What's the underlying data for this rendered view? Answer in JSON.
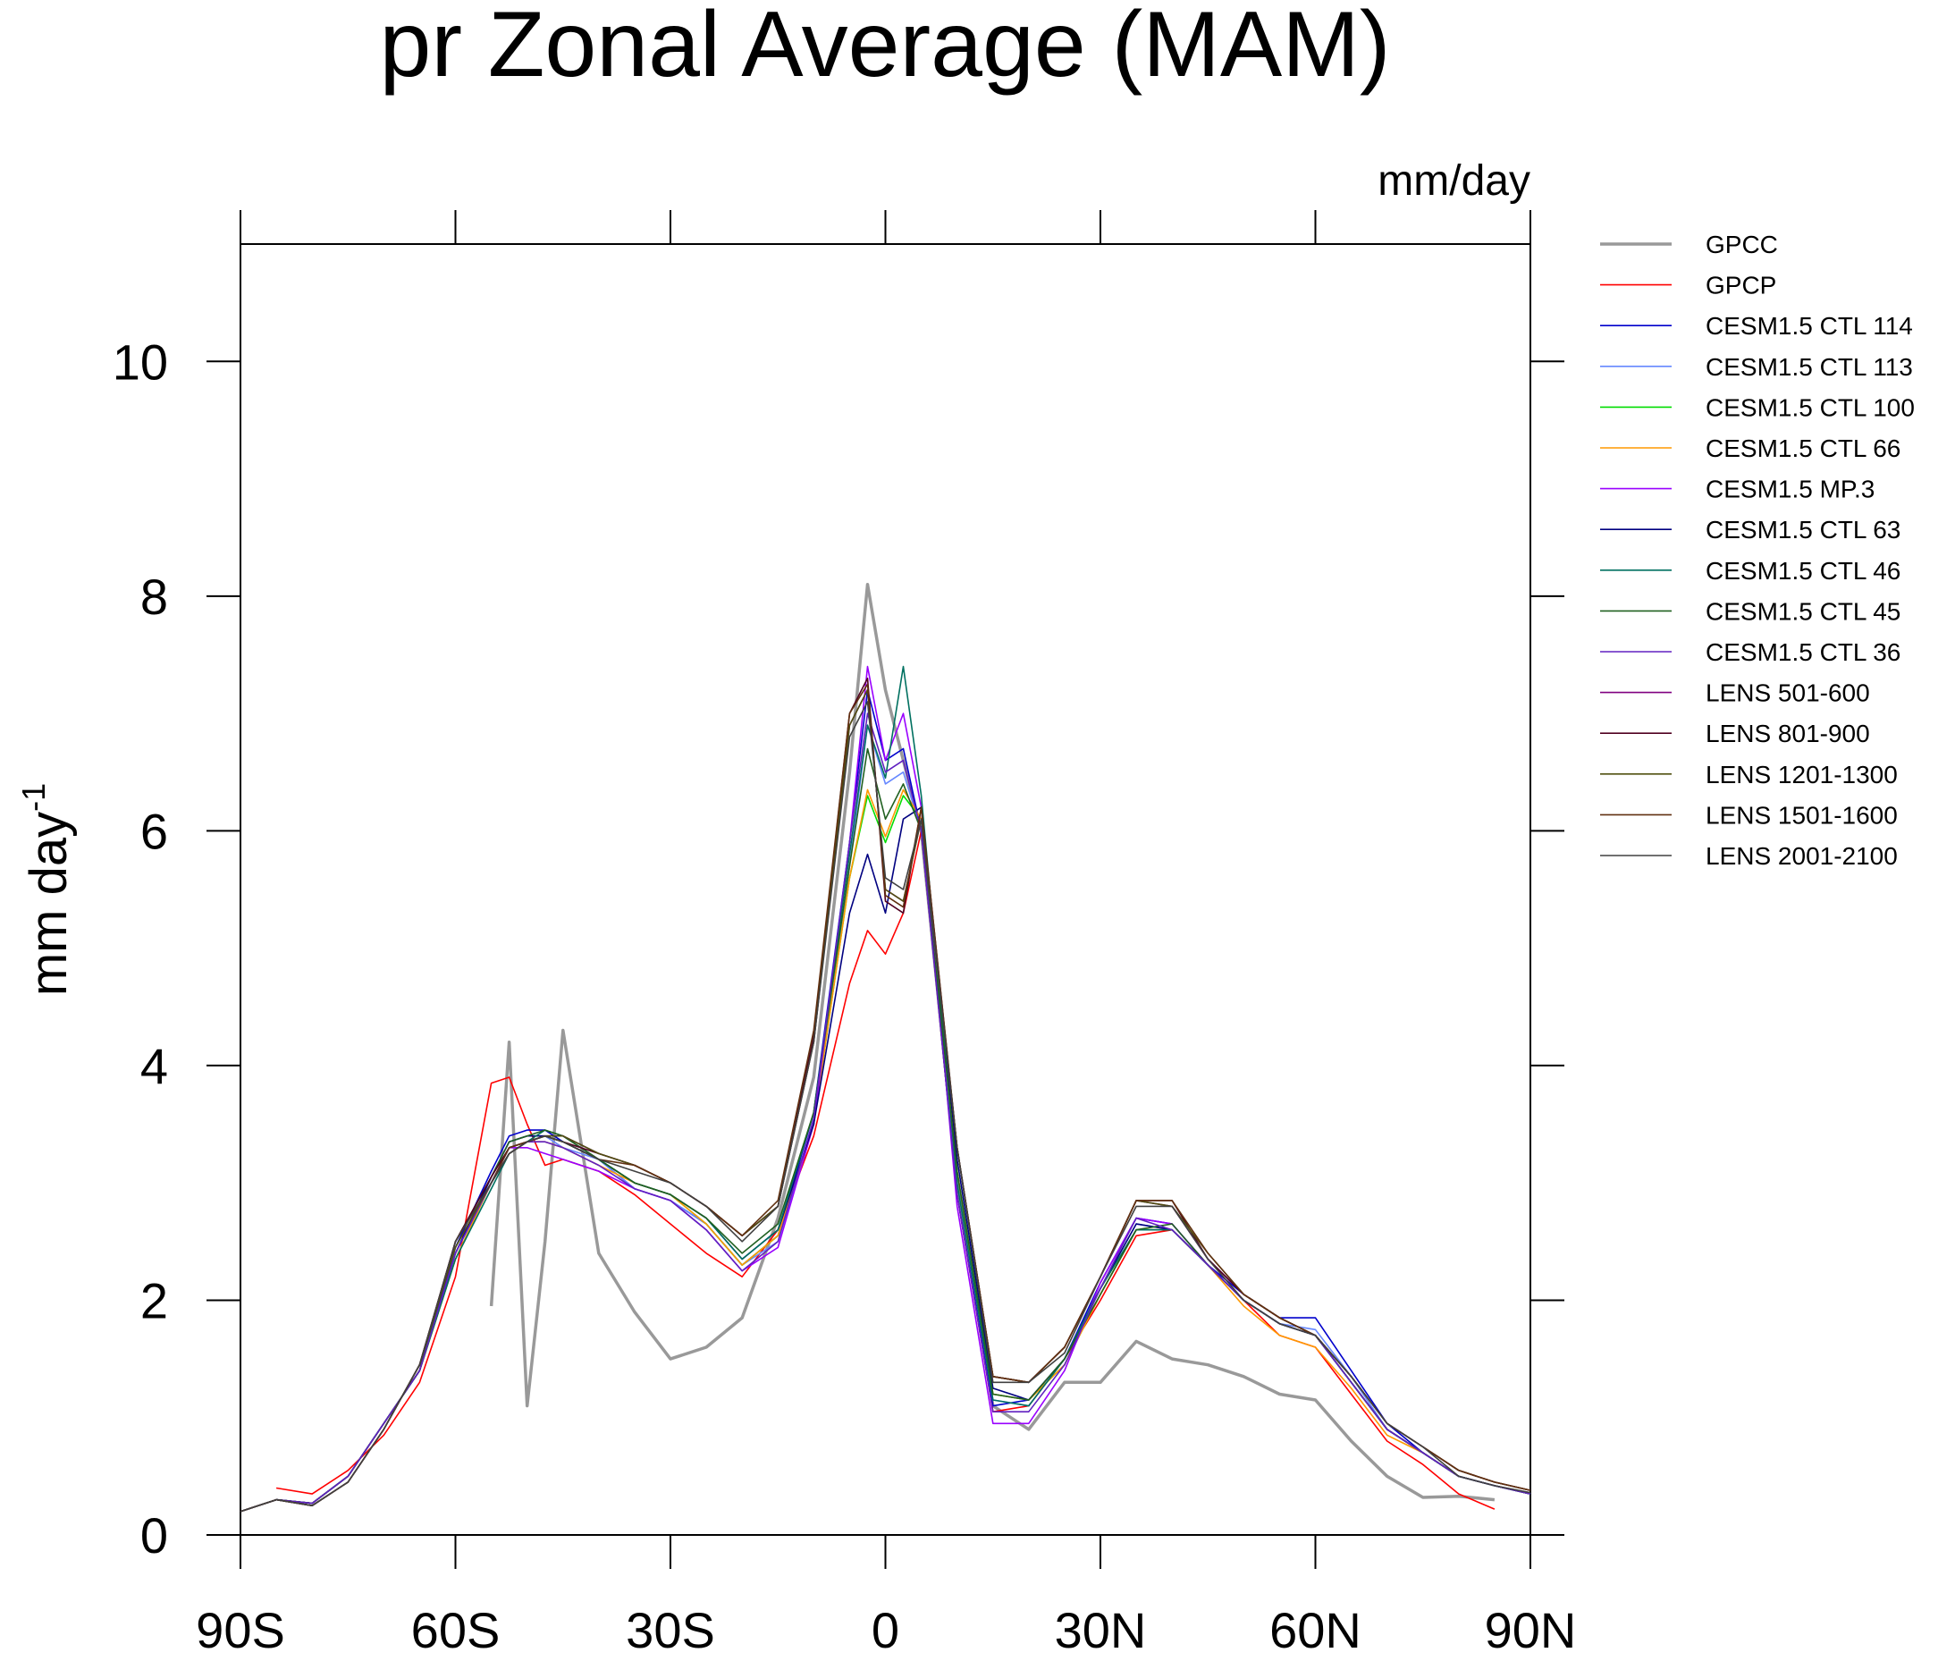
{
  "chart_data": {
    "type": "line",
    "title": "pr Zonal Average (MAM)",
    "units": "mm/day",
    "ylabel": "mm day",
    "ylabel_superscript": "-1",
    "x": [
      -90,
      -85,
      -80,
      -75,
      -70,
      -65,
      -60,
      -55,
      -52.5,
      -50,
      -47.5,
      -45,
      -40,
      -35,
      -30,
      -25,
      -20,
      -15,
      -10,
      -5,
      -2.5,
      0,
      2.5,
      5,
      10,
      15,
      20,
      25,
      30,
      35,
      40,
      45,
      50,
      55,
      60,
      65,
      70,
      75,
      80,
      85,
      90
    ],
    "xlim": [
      -90,
      90
    ],
    "xticks": [
      {
        "value": -90,
        "label": "90S"
      },
      {
        "value": -60,
        "label": "60S"
      },
      {
        "value": -30,
        "label": "30S"
      },
      0,
      {
        "value": 30,
        "label": "30N"
      },
      {
        "value": 60,
        "label": "60N"
      },
      {
        "value": 90,
        "label": "90N"
      }
    ],
    "ylim": [
      0,
      11
    ],
    "yticks": [
      0,
      2,
      4,
      6,
      8,
      10
    ],
    "legend": "right",
    "series": [
      {
        "name": "GPCC",
        "color": "#999999",
        "linewidth": 3.5,
        "values": [
          null,
          null,
          null,
          null,
          null,
          null,
          null,
          1.95,
          4.2,
          1.1,
          2.5,
          4.3,
          2.4,
          1.9,
          1.5,
          1.6,
          1.85,
          2.7,
          3.9,
          6.5,
          8.1,
          7.2,
          6.6,
          6.0,
          3.0,
          1.1,
          0.9,
          1.3,
          1.3,
          1.65,
          1.5,
          1.45,
          1.35,
          1.2,
          1.15,
          0.8,
          0.5,
          0.32,
          0.33,
          0.3,
          null
        ]
      },
      {
        "name": "GPCP",
        "color": "#ff0000",
        "linewidth": 1.6,
        "values": [
          null,
          0.4,
          0.35,
          0.55,
          0.85,
          1.3,
          2.2,
          3.85,
          3.9,
          3.5,
          3.15,
          3.2,
          3.1,
          2.9,
          2.65,
          2.4,
          2.2,
          2.6,
          3.4,
          4.7,
          5.15,
          4.95,
          5.3,
          6.0,
          2.9,
          1.05,
          1.1,
          1.5,
          2.0,
          2.55,
          2.6,
          2.3,
          2.0,
          1.7,
          1.6,
          1.2,
          0.8,
          0.6,
          0.35,
          0.22,
          null
        ]
      },
      {
        "name": "CESM1.5 CTL 114",
        "color": "#0000cc",
        "linewidth": 1.6,
        "values": [
          0.2,
          0.3,
          0.27,
          0.5,
          0.95,
          1.4,
          2.45,
          3.1,
          3.4,
          3.45,
          3.45,
          3.35,
          3.2,
          2.95,
          2.85,
          2.65,
          2.3,
          2.55,
          3.6,
          5.9,
          7.2,
          6.6,
          6.7,
          6.0,
          2.9,
          1.1,
          1.15,
          1.5,
          2.15,
          2.7,
          2.65,
          2.3,
          2.05,
          1.85,
          1.85,
          1.4,
          0.95,
          0.7,
          0.5,
          0.42,
          0.35
        ]
      },
      {
        "name": "CESM1.5 CTL 113",
        "color": "#6688ff",
        "linewidth": 1.6,
        "values": [
          0.2,
          0.3,
          0.27,
          0.5,
          0.95,
          1.4,
          2.4,
          3.05,
          3.35,
          3.4,
          3.4,
          3.3,
          3.2,
          2.95,
          2.85,
          2.65,
          2.3,
          2.5,
          3.5,
          5.7,
          6.9,
          6.4,
          6.5,
          6.0,
          3.0,
          1.15,
          1.1,
          1.5,
          2.1,
          2.65,
          2.6,
          2.3,
          2.0,
          1.8,
          1.75,
          1.35,
          0.9,
          0.7,
          0.5,
          0.42,
          0.35
        ]
      },
      {
        "name": "CESM1.5 CTL 100",
        "color": "#00dd00",
        "linewidth": 1.6,
        "values": [
          0.2,
          0.3,
          0.27,
          0.5,
          0.95,
          1.4,
          2.35,
          3.0,
          3.3,
          3.35,
          3.4,
          3.35,
          3.2,
          3.0,
          2.9,
          2.65,
          2.3,
          2.55,
          3.5,
          5.6,
          6.3,
          5.9,
          6.3,
          6.1,
          3.1,
          1.2,
          1.15,
          1.45,
          2.05,
          2.6,
          2.6,
          2.3,
          2.0,
          1.8,
          1.7,
          1.3,
          0.9,
          0.7,
          0.5,
          0.42,
          0.35
        ]
      },
      {
        "name": "CESM1.5 CTL 66",
        "color": "#ff9900",
        "linewidth": 1.6,
        "values": [
          0.2,
          0.3,
          0.27,
          0.5,
          0.95,
          1.4,
          2.35,
          3.0,
          3.3,
          3.35,
          3.35,
          3.3,
          3.15,
          3.0,
          2.9,
          2.65,
          2.3,
          2.55,
          3.5,
          5.6,
          6.35,
          5.95,
          6.35,
          6.1,
          3.1,
          1.2,
          1.15,
          1.45,
          2.05,
          2.6,
          2.6,
          2.3,
          1.95,
          1.7,
          1.6,
          1.25,
          0.85,
          0.7,
          0.5,
          0.42,
          0.35
        ]
      },
      {
        "name": "CESM1.5 MP.3",
        "color": "#9900ff",
        "linewidth": 1.6,
        "values": [
          0.2,
          0.3,
          0.27,
          0.5,
          0.95,
          1.4,
          2.4,
          3.0,
          3.3,
          3.3,
          3.25,
          3.2,
          3.1,
          2.95,
          2.85,
          2.6,
          2.25,
          2.45,
          3.5,
          5.9,
          7.4,
          6.6,
          7.0,
          6.2,
          2.8,
          0.95,
          0.95,
          1.4,
          2.15,
          2.7,
          2.65,
          2.3,
          2.0,
          1.8,
          1.7,
          1.3,
          0.9,
          0.7,
          0.5,
          0.42,
          0.35
        ]
      },
      {
        "name": "CESM1.5 CTL 63",
        "color": "#000080",
        "linewidth": 1.6,
        "values": [
          0.2,
          0.3,
          0.27,
          0.5,
          0.95,
          1.4,
          2.4,
          3.05,
          3.35,
          3.4,
          3.4,
          3.35,
          3.2,
          3.0,
          2.9,
          2.7,
          2.35,
          2.6,
          3.5,
          5.3,
          5.8,
          5.3,
          6.1,
          6.2,
          3.2,
          1.25,
          1.15,
          1.5,
          2.1,
          2.65,
          2.6,
          2.3,
          2.0,
          1.8,
          1.7,
          1.3,
          0.9,
          0.7,
          0.5,
          0.42,
          0.35
        ]
      },
      {
        "name": "CESM1.5 CTL 46",
        "color": "#007060",
        "linewidth": 1.6,
        "values": [
          0.2,
          0.3,
          0.27,
          0.5,
          0.95,
          1.4,
          2.35,
          2.95,
          3.25,
          3.35,
          3.45,
          3.4,
          3.2,
          3.0,
          2.9,
          2.7,
          2.35,
          2.6,
          3.6,
          5.8,
          6.9,
          6.45,
          7.4,
          6.3,
          3.0,
          1.15,
          1.1,
          1.5,
          2.1,
          2.6,
          2.6,
          2.3,
          2.0,
          1.8,
          1.7,
          1.3,
          0.9,
          0.7,
          0.5,
          0.42,
          0.35
        ]
      },
      {
        "name": "CESM1.5 CTL 45",
        "color": "#206020",
        "linewidth": 1.6,
        "values": [
          0.2,
          0.3,
          0.27,
          0.5,
          0.95,
          1.4,
          2.5,
          3.05,
          3.35,
          3.4,
          3.45,
          3.4,
          3.2,
          3.0,
          2.9,
          2.7,
          2.4,
          2.65,
          3.6,
          5.7,
          6.7,
          6.1,
          6.4,
          6.0,
          3.1,
          1.2,
          1.15,
          1.5,
          2.05,
          2.6,
          2.65,
          2.3,
          2.0,
          1.8,
          1.7,
          1.3,
          0.9,
          0.7,
          0.5,
          0.42,
          0.35
        ]
      },
      {
        "name": "CESM1.5 CTL 36",
        "color": "#6020c0",
        "linewidth": 1.6,
        "values": [
          0.2,
          0.3,
          0.27,
          0.5,
          0.95,
          1.4,
          2.4,
          3.0,
          3.3,
          3.35,
          3.35,
          3.3,
          3.15,
          2.95,
          2.85,
          2.6,
          2.25,
          2.5,
          3.55,
          5.9,
          7.0,
          6.5,
          6.6,
          6.0,
          2.9,
          1.05,
          1.05,
          1.45,
          2.1,
          2.7,
          2.6,
          2.3,
          2.0,
          1.8,
          1.7,
          1.3,
          0.9,
          0.7,
          0.5,
          0.42,
          0.35
        ]
      },
      {
        "name": "LENS 501-600",
        "color": "#800080",
        "linewidth": 1.6,
        "values": [
          0.2,
          0.3,
          0.25,
          0.45,
          0.9,
          1.45,
          2.5,
          3.0,
          3.25,
          3.35,
          3.4,
          3.4,
          3.25,
          3.15,
          3.0,
          2.8,
          2.55,
          2.8,
          4.2,
          6.9,
          7.2,
          5.5,
          5.4,
          6.1,
          3.3,
          1.35,
          1.3,
          1.6,
          2.2,
          2.85,
          2.8,
          2.35,
          2.05,
          1.85,
          1.7,
          1.35,
          0.95,
          0.75,
          0.55,
          0.45,
          0.38
        ]
      },
      {
        "name": "LENS 801-900",
        "color": "#500020",
        "linewidth": 1.6,
        "values": [
          0.2,
          0.3,
          0.25,
          0.45,
          0.9,
          1.45,
          2.5,
          3.05,
          3.3,
          3.35,
          3.4,
          3.35,
          3.25,
          3.15,
          3.0,
          2.8,
          2.55,
          2.8,
          4.25,
          7.0,
          7.3,
          5.4,
          5.3,
          6.2,
          3.3,
          1.35,
          1.3,
          1.6,
          2.2,
          2.85,
          2.85,
          2.35,
          2.05,
          1.85,
          1.7,
          1.35,
          0.95,
          0.75,
          0.55,
          0.45,
          0.38
        ]
      },
      {
        "name": "LENS 1201-1300",
        "color": "#505010",
        "linewidth": 1.6,
        "values": [
          0.2,
          0.3,
          0.25,
          0.45,
          0.9,
          1.45,
          2.45,
          3.0,
          3.25,
          3.35,
          3.4,
          3.4,
          3.25,
          3.15,
          3.0,
          2.8,
          2.55,
          2.8,
          4.2,
          6.9,
          7.2,
          5.5,
          5.4,
          6.1,
          3.3,
          1.35,
          1.3,
          1.6,
          2.2,
          2.85,
          2.8,
          2.4,
          2.05,
          1.85,
          1.7,
          1.35,
          0.95,
          0.75,
          0.55,
          0.45,
          0.38
        ]
      },
      {
        "name": "LENS 1501-1600",
        "color": "#603010",
        "linewidth": 1.6,
        "values": [
          0.2,
          0.3,
          0.25,
          0.45,
          0.9,
          1.45,
          2.5,
          3.0,
          3.3,
          3.35,
          3.4,
          3.35,
          3.2,
          3.15,
          3.0,
          2.8,
          2.55,
          2.85,
          4.3,
          7.0,
          7.25,
          5.45,
          5.35,
          6.2,
          3.3,
          1.35,
          1.3,
          1.6,
          2.2,
          2.85,
          2.85,
          2.4,
          2.05,
          1.85,
          1.7,
          1.35,
          0.95,
          0.75,
          0.55,
          0.45,
          0.38
        ]
      },
      {
        "name": "LENS 2001-2100",
        "color": "#404040",
        "linewidth": 1.6,
        "values": [
          0.2,
          0.3,
          0.25,
          0.45,
          0.9,
          1.45,
          2.5,
          3.0,
          3.25,
          3.35,
          3.4,
          3.35,
          3.2,
          3.1,
          3.0,
          2.8,
          2.5,
          2.8,
          4.2,
          6.8,
          7.1,
          5.6,
          5.5,
          6.1,
          3.3,
          1.3,
          1.3,
          1.55,
          2.2,
          2.8,
          2.8,
          2.35,
          2.0,
          1.8,
          1.7,
          1.35,
          0.95,
          0.75,
          0.5,
          0.42,
          0.36
        ]
      }
    ]
  }
}
